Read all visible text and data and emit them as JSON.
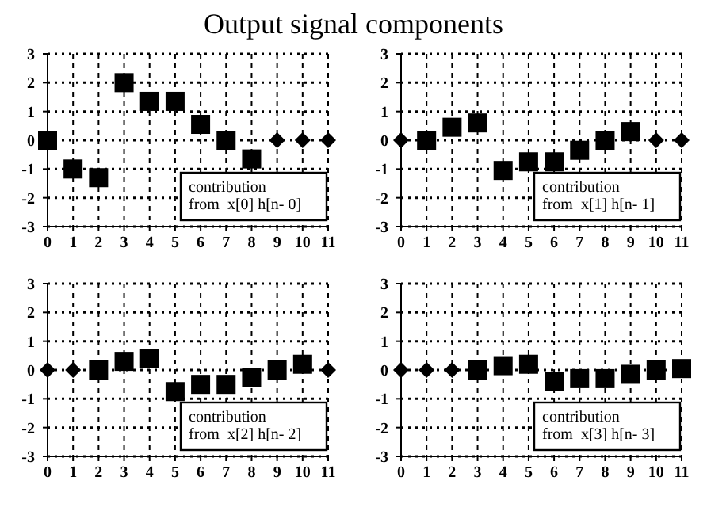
{
  "chart_data": [
    {
      "type": "scatter",
      "title": "Output signal components",
      "xlim": [
        0,
        11
      ],
      "xticks": [
        0,
        1,
        2,
        3,
        4,
        5,
        6,
        7,
        8,
        9,
        10,
        11
      ],
      "ylim": [
        -3,
        3
      ],
      "yticks": [
        -3,
        -2,
        -1,
        0,
        1,
        2,
        3
      ],
      "grid": true,
      "annotations": [
        "contribution\nfrom  x[0] h[n- 0]"
      ],
      "series": [
        {
          "color": "#000000",
          "marker": "square",
          "x": [
            0,
            1,
            2,
            3,
            4,
            5,
            6,
            7,
            8
          ],
          "values": [
            0,
            -1,
            -1.3,
            2,
            1.35,
            1.35,
            0.55,
            0,
            -0.65
          ]
        },
        {
          "color": "#000000",
          "marker": "diamond",
          "x": [
            9,
            10,
            11
          ],
          "values": [
            0,
            0,
            0
          ]
        }
      ]
    },
    {
      "type": "scatter",
      "xlim": [
        0,
        11
      ],
      "xticks": [
        0,
        1,
        2,
        3,
        4,
        5,
        6,
        7,
        8,
        9,
        10,
        11
      ],
      "ylim": [
        -3,
        3
      ],
      "yticks": [
        -3,
        -2,
        -1,
        0,
        1,
        2,
        3
      ],
      "grid": true,
      "annotations": [
        "contribution\nfrom  x[1] h[n- 1]"
      ],
      "series": [
        {
          "color": "#000000",
          "marker": "square",
          "x": [
            1,
            2,
            3,
            4,
            5,
            6,
            7,
            8,
            9
          ],
          "values": [
            0,
            0.45,
            0.6,
            -1.05,
            -0.75,
            -0.75,
            -0.35,
            0,
            0.3
          ]
        },
        {
          "color": "#000000",
          "marker": "diamond",
          "x": [
            0,
            10,
            11
          ],
          "values": [
            0,
            0,
            0
          ]
        }
      ]
    },
    {
      "type": "scatter",
      "xlim": [
        0,
        11
      ],
      "xticks": [
        0,
        1,
        2,
        3,
        4,
        5,
        6,
        7,
        8,
        9,
        10,
        11
      ],
      "ylim": [
        -3,
        3
      ],
      "yticks": [
        -3,
        -2,
        -1,
        0,
        1,
        2,
        3
      ],
      "grid": true,
      "annotations": [
        "contribution\nfrom  x[2] h[n- 2]"
      ],
      "series": [
        {
          "color": "#000000",
          "marker": "square",
          "x": [
            2,
            3,
            4,
            5,
            6,
            7,
            8,
            9,
            10
          ],
          "values": [
            0,
            0.3,
            0.4,
            -0.75,
            -0.5,
            -0.5,
            -0.25,
            0,
            0.2
          ]
        },
        {
          "color": "#000000",
          "marker": "diamond",
          "x": [
            0,
            1,
            11
          ],
          "values": [
            0,
            0,
            0
          ]
        }
      ]
    },
    {
      "type": "scatter",
      "xlim": [
        0,
        11
      ],
      "xticks": [
        0,
        1,
        2,
        3,
        4,
        5,
        6,
        7,
        8,
        9,
        10,
        11
      ],
      "ylim": [
        -3,
        3
      ],
      "yticks": [
        -3,
        -2,
        -1,
        0,
        1,
        2,
        3
      ],
      "grid": true,
      "annotations": [
        "contribution\nfrom  x[3] h[n- 3]"
      ],
      "series": [
        {
          "color": "#000000",
          "marker": "square",
          "x": [
            3,
            4,
            5,
            6,
            7,
            8,
            9,
            10,
            11
          ],
          "values": [
            0,
            0.15,
            0.2,
            -0.4,
            -0.3,
            -0.3,
            -0.15,
            0,
            0.05
          ]
        },
        {
          "color": "#000000",
          "marker": "diamond",
          "x": [
            0,
            1,
            2
          ],
          "values": [
            0,
            0,
            0
          ]
        }
      ]
    }
  ]
}
